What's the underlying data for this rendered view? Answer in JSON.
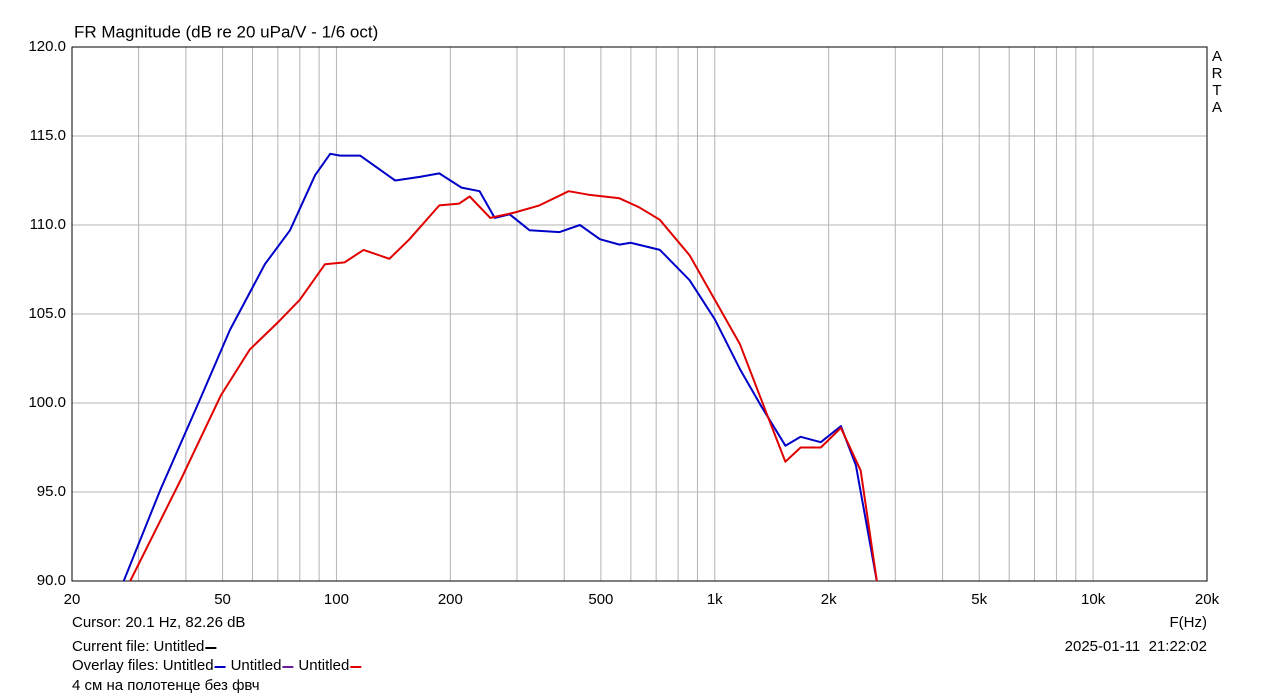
{
  "chart_data": {
    "type": "line",
    "title": "FR Magnitude (dB re 20 uPa/V - 1/6 oct)",
    "side_label": "ARTA",
    "x_label": "F(Hz)",
    "xscale": "log",
    "xlim": [
      20,
      20000
    ],
    "ylim": [
      90,
      120
    ],
    "xticks": [
      20,
      50,
      100,
      200,
      500,
      {
        "value": 1000,
        "label": "1k"
      },
      {
        "value": 2000,
        "label": "2k"
      },
      {
        "value": 5000,
        "label": "5k"
      },
      {
        "value": 10000,
        "label": "10k"
      },
      {
        "value": 20000,
        "label": "20k"
      }
    ],
    "xgrid": [
      30,
      40,
      60,
      70,
      80,
      90,
      300,
      400,
      600,
      700,
      800,
      900,
      3000,
      4000,
      6000,
      7000,
      8000,
      9000
    ],
    "yticks": [
      {
        "value": 90,
        "label": "90.0"
      },
      {
        "value": 95,
        "label": "95.0"
      },
      {
        "value": 100,
        "label": "100.0"
      },
      {
        "value": 105,
        "label": "105.0"
      },
      {
        "value": 110,
        "label": "110.0"
      },
      {
        "value": 115,
        "label": "115.0"
      },
      {
        "value": 120,
        "label": "120.0"
      }
    ],
    "grid": true,
    "series": [
      {
        "color": "#0000c8",
        "x": [
          27.4,
          34.2,
          43.6,
          52.3,
          64.7,
          75.4,
          87.8,
          96.3,
          102.3,
          115.5,
          143,
          166,
          187,
          214,
          239,
          262,
          287,
          324,
          389,
          440,
          497,
          560,
          600,
          716,
          858,
          1000,
          1166,
          1320,
          1537,
          1686,
          1906,
          2155,
          2360,
          2680
        ],
        "values": [
          90.0,
          95.1,
          100.2,
          104.1,
          107.8,
          109.7,
          112.8,
          114.0,
          113.9,
          113.9,
          112.5,
          112.7,
          112.9,
          112.1,
          111.9,
          110.4,
          110.6,
          109.7,
          109.6,
          110.0,
          109.2,
          108.9,
          109.0,
          108.6,
          106.9,
          104.7,
          101.9,
          99.9,
          97.6,
          98.1,
          97.8,
          98.7,
          96.5,
          90.0
        ]
      },
      {
        "color": "#e00000",
        "x": [
          28.5,
          38.8,
          49.4,
          59.0,
          70.6,
          80.0,
          93.3,
          105,
          118,
          138,
          156,
          187,
          211,
          225,
          255,
          296,
          344,
          411,
          464,
          560,
          630,
          715,
          858,
          1000,
          1166,
          1360,
          1537,
          1686,
          1906,
          2155,
          2430,
          2680
        ],
        "values": [
          90.0,
          95.7,
          100.4,
          103.0,
          104.6,
          105.8,
          107.8,
          107.9,
          108.6,
          108.1,
          109.2,
          111.1,
          111.2,
          111.6,
          110.4,
          110.7,
          111.1,
          111.9,
          111.7,
          111.5,
          111.0,
          110.3,
          108.3,
          105.8,
          103.3,
          99.6,
          96.7,
          97.5,
          97.5,
          98.6,
          96.2,
          90.0
        ]
      }
    ]
  },
  "footer": {
    "cursor": "Cursor: 20.1 Hz, 82.26 dB",
    "current_file_label": "Current file:",
    "current_file": {
      "name": "Untitled",
      "color": "#000000"
    },
    "overlay_label": "Overlay files:",
    "overlay_files": [
      {
        "name": "Untitled",
        "color": "#0000c8"
      },
      {
        "name": "Untitled",
        "color": "#6a1b9a"
      },
      {
        "name": "Untitled",
        "color": "#e00000"
      }
    ],
    "timestamp": "2025-01-11  21:22:02",
    "comment": "4 см на полотенце без фвч"
  }
}
